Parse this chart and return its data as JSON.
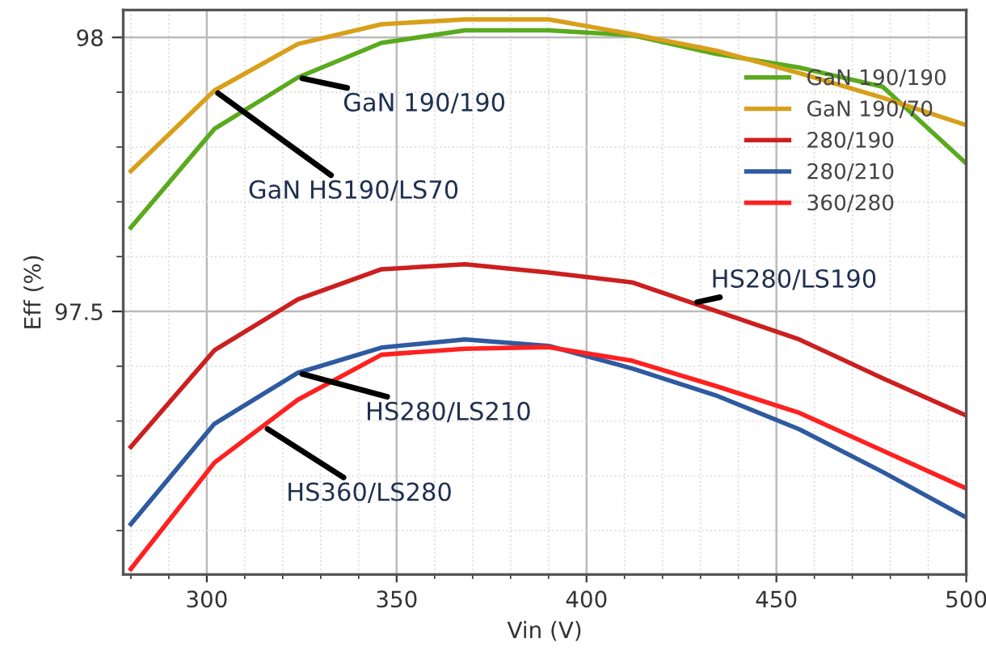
{
  "chart_data": {
    "type": "line",
    "xlabel": "Vin (V)",
    "ylabel": "Eff (%)",
    "x": [
      280,
      302,
      324,
      346,
      368,
      390,
      412,
      434,
      456,
      478,
      500
    ],
    "xlim": [
      278,
      500
    ],
    "xticks": [
      300,
      350,
      400,
      450,
      500
    ],
    "ylim": [
      97.02,
      98.05
    ],
    "yticks": [
      97.5,
      98
    ],
    "grid": true,
    "legend": "top right",
    "marker": "none",
    "line_style": "solid",
    "series": [
      {
        "name": "GaN 190/190",
        "color": "#5aaa1e",
        "values": [
          97.653,
          97.833,
          97.927,
          97.99,
          98.013,
          98.013,
          98.004,
          97.97,
          97.945,
          97.91,
          97.77
        ]
      },
      {
        "name": "GaN 190/70",
        "color": "#d89f1a",
        "values": [
          97.756,
          97.903,
          97.988,
          98.024,
          98.033,
          98.033,
          98.006,
          97.976,
          97.935,
          97.89,
          97.84
        ]
      },
      {
        "name": "280/190",
        "color": "#cc1f1f",
        "values": [
          97.253,
          97.429,
          97.522,
          97.577,
          97.586,
          97.571,
          97.553,
          97.501,
          97.449,
          97.378,
          97.31
        ]
      },
      {
        "name": "280/210",
        "color": "#2e5aa0",
        "values": [
          97.112,
          97.295,
          97.388,
          97.434,
          97.449,
          97.437,
          97.396,
          97.347,
          97.285,
          97.207,
          97.124
        ]
      },
      {
        "name": "360/280",
        "color": "#ff2020",
        "values": [
          97.03,
          97.224,
          97.339,
          97.421,
          97.432,
          97.435,
          97.41,
          97.364,
          97.315,
          97.246,
          97.177
        ]
      }
    ],
    "annotations": [
      {
        "text": "GaN 190/190",
        "x": 324,
        "y": 97.927
      },
      {
        "text": "GaN HS190/LS70",
        "x": 302,
        "y": 97.903
      },
      {
        "text": "HS280/LS190",
        "x": 428,
        "y": 97.515
      },
      {
        "text": "HS280/LS210",
        "x": 324,
        "y": 97.388
      },
      {
        "text": "HS360/LS280",
        "x": 315,
        "y": 97.29
      }
    ]
  }
}
